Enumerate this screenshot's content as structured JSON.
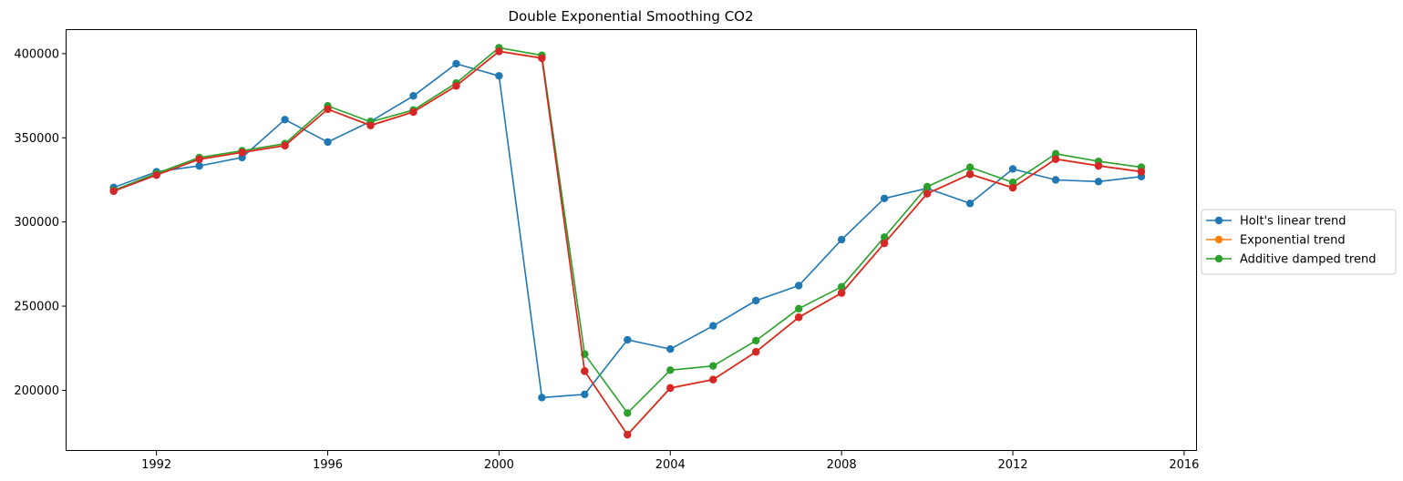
{
  "chart_data": {
    "type": "line",
    "title": "Double Exponential Smoothing CO2",
    "xlabel": "",
    "ylabel": "",
    "xlim": [
      1989.9,
      2016.3
    ],
    "ylim": [
      164000,
      414000
    ],
    "x_ticks": [
      1992,
      1996,
      2000,
      2004,
      2008,
      2012,
      2016
    ],
    "y_ticks": [
      200000,
      250000,
      300000,
      350000,
      400000
    ],
    "x_tick_labels": [
      "1992",
      "1996",
      "2000",
      "2004",
      "2008",
      "2012",
      "2016"
    ],
    "y_tick_labels": [
      "200000",
      "250000",
      "300000",
      "350000",
      "400000"
    ],
    "grid": false,
    "legend_position": "outside-right",
    "x": [
      1991,
      1992,
      1993,
      1994,
      1995,
      1996,
      1997,
      1998,
      1999,
      2000,
      2001,
      2002,
      2003,
      2004,
      2005,
      2006,
      2007,
      2008,
      2009,
      2010,
      2011,
      2012,
      2013,
      2014,
      2015
    ],
    "series": [
      {
        "name": "Holt's linear trend",
        "color": "#1f77b4",
        "in_legend": true,
        "values": [
          320500,
          329800,
          333300,
          338300,
          360800,
          347500,
          359700,
          374900,
          394000,
          386800,
          195700,
          197600,
          230000,
          224500,
          238300,
          253300,
          262200,
          289500,
          314000,
          320000,
          311000,
          331500,
          325000,
          324000,
          327000
        ]
      },
      {
        "name": "Exponential trend",
        "color": "#ff7f0e",
        "in_legend": true,
        "values": [
          318500,
          328000,
          337500,
          341500,
          345500,
          367000,
          357500,
          365500,
          381000,
          401500,
          397500,
          211500,
          173800,
          201500,
          206500,
          223000,
          243500,
          258000,
          287500,
          317000,
          328500,
          320500,
          337500,
          333500,
          330000
        ]
      },
      {
        "name": "Additive damped trend",
        "color": "#2ca02c",
        "in_legend": true,
        "values": [
          318800,
          328800,
          338300,
          342300,
          346500,
          369000,
          359500,
          366500,
          382500,
          403500,
          399000,
          221500,
          186500,
          212000,
          214500,
          229500,
          248500,
          261500,
          291000,
          321000,
          332500,
          323500,
          340500,
          336000,
          332500
        ]
      },
      {
        "name": "",
        "color": "#d62728",
        "in_legend": false,
        "values": [
          318300,
          327800,
          337200,
          341300,
          345300,
          367000,
          357300,
          365300,
          380800,
          401300,
          397300,
          211300,
          173600,
          201300,
          206300,
          222800,
          243300,
          257800,
          287300,
          316800,
          328300,
          320300,
          337300,
          333300,
          329800
        ]
      }
    ]
  }
}
